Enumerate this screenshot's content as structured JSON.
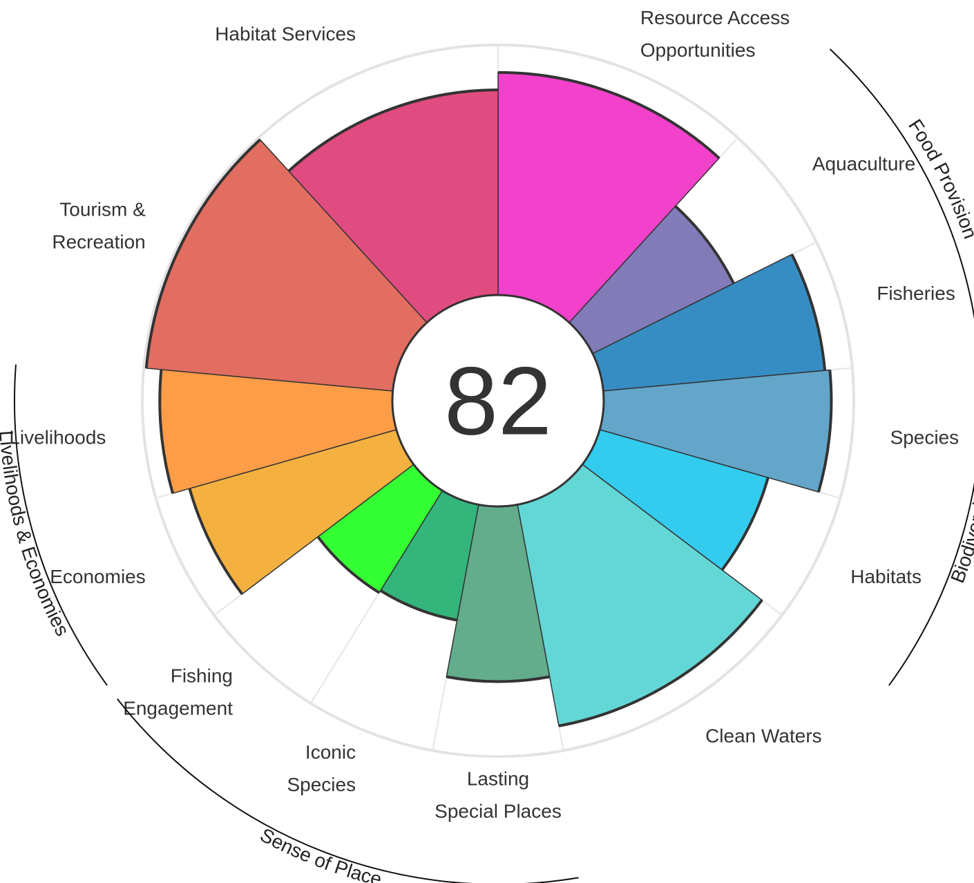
{
  "chart_data": {
    "type": "polar-bar",
    "score": "82",
    "rlim": [
      0,
      100
    ],
    "grid": true,
    "outer_ring_value": 100,
    "categories": [
      {
        "id": "resource-access",
        "label_lines": [
          "Resource Access",
          "Opportunities"
        ],
        "value": 89,
        "weight": 2,
        "color": "#F241CB"
      },
      {
        "id": "aquaculture",
        "label_lines": [
          "Aquaculture"
        ],
        "value": 63,
        "weight": 1,
        "color": "#817BB8"
      },
      {
        "id": "fisheries",
        "label_lines": [
          "Fisheries"
        ],
        "value": 89,
        "weight": 1,
        "color": "#368DC4"
      },
      {
        "id": "species",
        "label_lines": [
          "Species"
        ],
        "value": 91,
        "weight": 1,
        "color": "#63A6CA"
      },
      {
        "id": "habitats",
        "label_lines": [
          "Habitats"
        ],
        "value": 70,
        "weight": 1,
        "color": "#33CBEE"
      },
      {
        "id": "clean-waters",
        "label_lines": [
          "Clean Waters"
        ],
        "value": 90,
        "weight": 2,
        "color": "#63D7D6"
      },
      {
        "id": "lasting-special-places",
        "label_lines": [
          "Lasting",
          "Special Places"
        ],
        "value": 70,
        "weight": 1,
        "color": "#63AC8C"
      },
      {
        "id": "iconic-species",
        "label_lines": [
          "Iconic",
          "Species"
        ],
        "value": 47,
        "weight": 1,
        "color": "#33B57B"
      },
      {
        "id": "fishing-engagement",
        "label_lines": [
          "Fishing",
          "Engagement"
        ],
        "value": 48,
        "weight": 1,
        "color": "#33FF33"
      },
      {
        "id": "economies",
        "label_lines": [
          "Economies"
        ],
        "value": 86,
        "weight": 1,
        "color": "#F4B140"
      },
      {
        "id": "livelihoods",
        "label_lines": [
          "Livelihoods"
        ],
        "value": 93,
        "weight": 1,
        "color": "#FE9D47"
      },
      {
        "id": "tourism-recreation",
        "label_lines": [
          "Tourism &",
          "Recreation"
        ],
        "value": 99,
        "weight": 2,
        "color": "#E26E61"
      },
      {
        "id": "habitat-services",
        "label_lines": [
          "Habitat Services"
        ],
        "value": 82,
        "weight": 2,
        "color": "#E04B80"
      }
    ],
    "groups": [
      {
        "label": "Food Provision",
        "from": "aquaculture",
        "to": "fisheries"
      },
      {
        "label": "Biodiversity",
        "from": "species",
        "to": "habitats"
      },
      {
        "label": "Sense of Place",
        "from": "lasting-special-places",
        "to": "fishing-engagement"
      },
      {
        "label": "Livelihoods & Economies",
        "from": "economies",
        "to": "livelihoods"
      }
    ]
  }
}
